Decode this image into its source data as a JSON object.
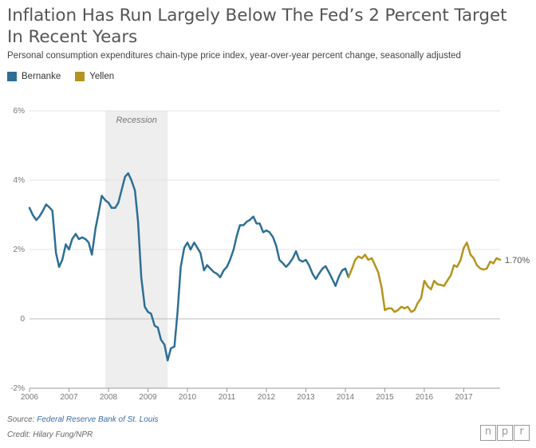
{
  "title": "Inflation Has Run Largely Below The Fed’s 2 Percent Target In Recent Years",
  "subtitle": "Personal consumption expenditures chain-type price index, year-over-year percent change, seasonally adjusted",
  "legend": {
    "bernanke": "Bernanke",
    "yellen": "Yellen"
  },
  "colors": {
    "bernanke": "#2e6f94",
    "yellen": "#b5931e",
    "recession": "#eeeeee"
  },
  "source": {
    "label": "Source:",
    "link_text": "Federal Reserve Bank of St. Louis"
  },
  "credit": "Credit: Hilary Fung/NPR",
  "logo": [
    "n",
    "p",
    "r"
  ],
  "chart_data": {
    "type": "line",
    "title": "Inflation Has Run Largely Below The Fed’s 2 Percent Target In Recent Years",
    "subtitle": "Personal consumption expenditures chain-type price index, year-over-year percent change, seasonally adjusted",
    "xlabel": "",
    "ylabel": "",
    "xlim": [
      2006.0,
      2017.92
    ],
    "ylim": [
      -2,
      6
    ],
    "yticks": [
      -2,
      0,
      2,
      4,
      6
    ],
    "ytick_labels": [
      "-2%",
      "0",
      "2%",
      "4%",
      "6%"
    ],
    "xticks": [
      2006,
      2007,
      2008,
      2009,
      2010,
      2011,
      2012,
      2013,
      2014,
      2015,
      2016,
      2017
    ],
    "xtick_labels": [
      "2006",
      "2007",
      "2008",
      "2009",
      "2010",
      "2011",
      "2012",
      "2013",
      "2014",
      "2015",
      "2016",
      "2017"
    ],
    "grid": "horizontal",
    "legend_position": "top-left",
    "recession": {
      "label": "Recession",
      "start": 2007.92,
      "end": 2009.5
    },
    "end_label": "1.70%",
    "series": [
      {
        "name": "Bernanke",
        "color": "#2e6f94",
        "points": [
          [
            2006.0,
            3.2
          ],
          [
            2006.08,
            3.0
          ],
          [
            2006.17,
            2.85
          ],
          [
            2006.25,
            2.95
          ],
          [
            2006.33,
            3.1
          ],
          [
            2006.42,
            3.3
          ],
          [
            2006.5,
            3.22
          ],
          [
            2006.58,
            3.12
          ],
          [
            2006.67,
            1.9
          ],
          [
            2006.75,
            1.5
          ],
          [
            2006.83,
            1.7
          ],
          [
            2006.92,
            2.15
          ],
          [
            2007.0,
            2.0
          ],
          [
            2007.08,
            2.3
          ],
          [
            2007.17,
            2.45
          ],
          [
            2007.25,
            2.3
          ],
          [
            2007.33,
            2.35
          ],
          [
            2007.42,
            2.3
          ],
          [
            2007.5,
            2.2
          ],
          [
            2007.58,
            1.85
          ],
          [
            2007.67,
            2.6
          ],
          [
            2007.75,
            3.05
          ],
          [
            2007.83,
            3.55
          ],
          [
            2007.92,
            3.42
          ],
          [
            2008.0,
            3.35
          ],
          [
            2008.08,
            3.2
          ],
          [
            2008.17,
            3.2
          ],
          [
            2008.25,
            3.35
          ],
          [
            2008.33,
            3.7
          ],
          [
            2008.42,
            4.1
          ],
          [
            2008.5,
            4.2
          ],
          [
            2008.58,
            4.0
          ],
          [
            2008.67,
            3.7
          ],
          [
            2008.75,
            2.8
          ],
          [
            2008.83,
            1.2
          ],
          [
            2008.92,
            0.35
          ],
          [
            2009.0,
            0.2
          ],
          [
            2009.08,
            0.15
          ],
          [
            2009.17,
            -0.2
          ],
          [
            2009.25,
            -0.25
          ],
          [
            2009.33,
            -0.6
          ],
          [
            2009.42,
            -0.75
          ],
          [
            2009.5,
            -1.2
          ],
          [
            2009.58,
            -0.85
          ],
          [
            2009.67,
            -0.8
          ],
          [
            2009.75,
            0.2
          ],
          [
            2009.83,
            1.5
          ],
          [
            2009.92,
            2.05
          ],
          [
            2010.0,
            2.2
          ],
          [
            2010.08,
            2.0
          ],
          [
            2010.17,
            2.2
          ],
          [
            2010.25,
            2.05
          ],
          [
            2010.33,
            1.9
          ],
          [
            2010.42,
            1.4
          ],
          [
            2010.5,
            1.55
          ],
          [
            2010.58,
            1.45
          ],
          [
            2010.67,
            1.35
          ],
          [
            2010.75,
            1.3
          ],
          [
            2010.83,
            1.2
          ],
          [
            2010.92,
            1.4
          ],
          [
            2011.0,
            1.5
          ],
          [
            2011.08,
            1.7
          ],
          [
            2011.17,
            2.0
          ],
          [
            2011.25,
            2.4
          ],
          [
            2011.33,
            2.7
          ],
          [
            2011.42,
            2.7
          ],
          [
            2011.5,
            2.8
          ],
          [
            2011.58,
            2.85
          ],
          [
            2011.67,
            2.95
          ],
          [
            2011.75,
            2.75
          ],
          [
            2011.83,
            2.75
          ],
          [
            2011.92,
            2.5
          ],
          [
            2012.0,
            2.55
          ],
          [
            2012.08,
            2.5
          ],
          [
            2012.17,
            2.35
          ],
          [
            2012.25,
            2.1
          ],
          [
            2012.33,
            1.7
          ],
          [
            2012.42,
            1.6
          ],
          [
            2012.5,
            1.5
          ],
          [
            2012.58,
            1.6
          ],
          [
            2012.67,
            1.75
          ],
          [
            2012.75,
            1.95
          ],
          [
            2012.83,
            1.7
          ],
          [
            2012.92,
            1.65
          ],
          [
            2013.0,
            1.7
          ],
          [
            2013.08,
            1.55
          ],
          [
            2013.17,
            1.3
          ],
          [
            2013.25,
            1.15
          ],
          [
            2013.33,
            1.3
          ],
          [
            2013.42,
            1.45
          ],
          [
            2013.5,
            1.52
          ],
          [
            2013.58,
            1.35
          ],
          [
            2013.67,
            1.15
          ],
          [
            2013.75,
            0.95
          ],
          [
            2013.83,
            1.2
          ],
          [
            2013.92,
            1.4
          ],
          [
            2014.0,
            1.45
          ],
          [
            2014.08,
            1.2
          ]
        ]
      },
      {
        "name": "Yellen",
        "color": "#b5931e",
        "points": [
          [
            2014.08,
            1.2
          ],
          [
            2014.17,
            1.45
          ],
          [
            2014.25,
            1.7
          ],
          [
            2014.33,
            1.8
          ],
          [
            2014.42,
            1.75
          ],
          [
            2014.5,
            1.85
          ],
          [
            2014.58,
            1.7
          ],
          [
            2014.67,
            1.75
          ],
          [
            2014.75,
            1.55
          ],
          [
            2014.83,
            1.35
          ],
          [
            2014.92,
            0.9
          ],
          [
            2015.0,
            0.25
          ],
          [
            2015.08,
            0.3
          ],
          [
            2015.17,
            0.3
          ],
          [
            2015.25,
            0.2
          ],
          [
            2015.33,
            0.25
          ],
          [
            2015.42,
            0.35
          ],
          [
            2015.5,
            0.3
          ],
          [
            2015.58,
            0.35
          ],
          [
            2015.67,
            0.2
          ],
          [
            2015.75,
            0.25
          ],
          [
            2015.83,
            0.45
          ],
          [
            2015.92,
            0.6
          ],
          [
            2016.0,
            1.1
          ],
          [
            2016.08,
            0.95
          ],
          [
            2016.17,
            0.85
          ],
          [
            2016.25,
            1.1
          ],
          [
            2016.33,
            1.0
          ],
          [
            2016.42,
            0.98
          ],
          [
            2016.5,
            0.95
          ],
          [
            2016.58,
            1.1
          ],
          [
            2016.67,
            1.25
          ],
          [
            2016.75,
            1.55
          ],
          [
            2016.83,
            1.5
          ],
          [
            2016.92,
            1.7
          ],
          [
            2017.0,
            2.05
          ],
          [
            2017.08,
            2.2
          ],
          [
            2017.17,
            1.85
          ],
          [
            2017.25,
            1.75
          ],
          [
            2017.33,
            1.55
          ],
          [
            2017.42,
            1.45
          ],
          [
            2017.5,
            1.42
          ],
          [
            2017.58,
            1.45
          ],
          [
            2017.67,
            1.65
          ],
          [
            2017.75,
            1.6
          ],
          [
            2017.83,
            1.75
          ],
          [
            2017.92,
            1.7
          ]
        ]
      }
    ]
  }
}
